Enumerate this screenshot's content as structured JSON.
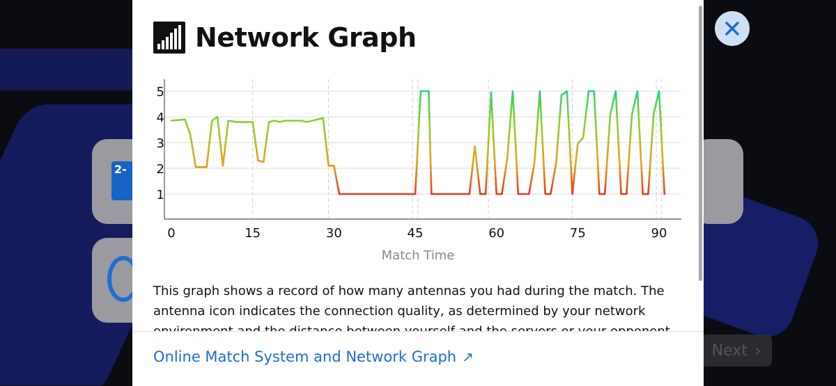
{
  "modal": {
    "title": "Network Graph",
    "description": "This graph shows a record of how many antennas you had during the match. The antenna icon indicates the connection quality, as determined by your network environment and the distance between yourself and the servers or your opponent.",
    "footer_link": "Online Match System and Network Graph",
    "footer_link_icon": "external-arrow-icon"
  },
  "background": {
    "next_label": "Next",
    "card_icon_text": "2-"
  },
  "colors": {
    "high": "#2ecf7a",
    "mid": "#8bd12f",
    "low": "#e23a1f",
    "link": "#1a6fd0",
    "close_bg": "#cfe0f3",
    "close_x": "#1a6fd0"
  },
  "chart_data": {
    "type": "line",
    "xlabel": "Match Time",
    "ylabel": "",
    "xticks": [
      0,
      15,
      30,
      45,
      60,
      75,
      90
    ],
    "yticks": [
      1,
      2,
      3,
      4,
      5
    ],
    "xlim": [
      0,
      92
    ],
    "ylim": [
      0,
      5.4
    ],
    "grid": true,
    "dashed_x_markers": [
      15,
      29,
      44.5,
      45.5,
      58.5,
      74,
      89.5,
      90.5
    ],
    "series": [
      {
        "x": [
          0,
          2.5,
          3.5,
          4.5,
          5.5,
          6.5,
          7.5,
          8.5,
          9.5,
          10.5,
          12,
          14,
          15,
          16,
          17,
          18,
          19,
          20,
          21,
          22,
          23,
          24,
          25,
          26,
          27,
          28,
          29,
          30,
          31,
          45,
          46,
          47,
          47.5,
          48,
          55,
          56,
          57,
          58,
          59,
          60,
          61,
          62,
          63,
          64,
          65,
          66,
          67,
          68,
          69,
          70,
          71,
          72,
          73,
          74,
          75,
          76,
          77,
          78,
          79,
          80,
          81,
          82,
          83,
          84,
          85,
          86,
          87,
          88,
          89,
          90,
          91
        ],
        "y": [
          3.85,
          3.9,
          3.3,
          2.05,
          2.05,
          2.05,
          3.85,
          4.0,
          2.1,
          3.85,
          3.8,
          3.8,
          3.8,
          2.3,
          2.25,
          3.8,
          3.85,
          3.8,
          3.85,
          3.85,
          3.85,
          3.85,
          3.8,
          3.85,
          3.9,
          3.95,
          2.1,
          2.1,
          1.0,
          1.0,
          5.0,
          5.0,
          5.0,
          1.0,
          1.0,
          2.85,
          1.0,
          1.0,
          4.95,
          1.0,
          1.0,
          2.4,
          5.0,
          1.0,
          1.0,
          1.0,
          2.2,
          5.0,
          1.0,
          1.0,
          2.2,
          4.85,
          5.0,
          1.0,
          2.95,
          3.2,
          5.0,
          5.0,
          1.0,
          1.0,
          4.1,
          5.0,
          1.0,
          1.0,
          4.1,
          5.0,
          1.0,
          1.0,
          4.1,
          5.0,
          1.0
        ]
      }
    ]
  }
}
